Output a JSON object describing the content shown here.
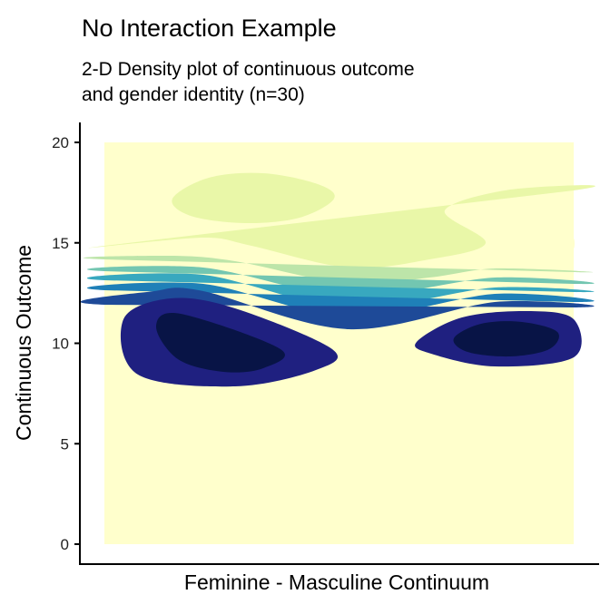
{
  "chart_data": {
    "type": "density2d",
    "title": "No Interaction Example",
    "subtitle_lines": [
      "2-D Density plot of continuous outcome",
      "and gender identity (n=30)"
    ],
    "xlabel": "Feminine - Masculine Continuum",
    "ylabel": "Continuous Outcome",
    "ylim": [
      0,
      20
    ],
    "y_ticks": [
      "0",
      "5",
      "10",
      "15",
      "20"
    ],
    "y_tick_values": [
      0,
      5,
      10,
      15,
      20
    ],
    "x_ticks": [],
    "grid": false,
    "legend": "none",
    "palette": [
      "#ffffcc",
      "#e9f7a8",
      "#bde5a9",
      "#73c6b1",
      "#38a8bf",
      "#1f80b8",
      "#1e4a98",
      "#1f2080",
      "#081446"
    ],
    "density_peaks_y": [
      10,
      10
    ]
  }
}
